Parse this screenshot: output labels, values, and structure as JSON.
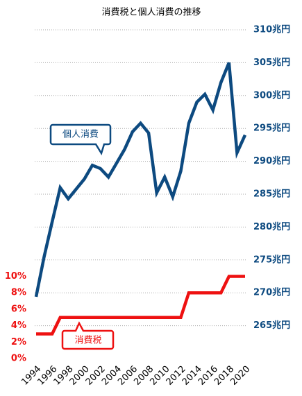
{
  "chart_data": {
    "type": "line",
    "title": "消費税と個人消費の推移",
    "x": [
      1994,
      1995,
      1996,
      1997,
      1998,
      1999,
      2000,
      2001,
      2002,
      2003,
      2004,
      2005,
      2006,
      2007,
      2008,
      2009,
      2010,
      2011,
      2012,
      2013,
      2014,
      2015,
      2016,
      2017,
      2018,
      2019,
      2020
    ],
    "xticks": [
      1994,
      1996,
      1998,
      2000,
      2002,
      2004,
      2006,
      2008,
      2010,
      2012,
      2014,
      2016,
      2018,
      2020
    ],
    "xlim": [
      1994,
      2020
    ],
    "series": [
      {
        "name": "個人消費",
        "color": "#0d4a80",
        "axis": "y2",
        "values": [
          269.4,
          275.5,
          280.8,
          286.0,
          284.3,
          285.8,
          287.3,
          289.4,
          288.9,
          287.6,
          289.7,
          291.8,
          294.5,
          295.8,
          294.3,
          285.2,
          287.6,
          284.6,
          288.5,
          295.8,
          299.0,
          300.2,
          297.8,
          302.0,
          305.0,
          291.3,
          294.0
        ]
      },
      {
        "name": "消費税",
        "color": "#ee1111",
        "values": [
          3,
          3,
          3,
          5,
          5,
          5,
          5,
          5,
          5,
          5,
          5,
          5,
          5,
          5,
          5,
          5,
          5,
          5,
          5,
          8,
          8,
          8,
          8,
          8,
          10,
          10,
          10
        ]
      }
    ],
    "ylim": [
      0,
      40
    ],
    "yticks": [
      {
        "value": 0,
        "label": "0%"
      },
      {
        "value": 2,
        "label": "2%"
      },
      {
        "value": 4,
        "label": "4%"
      },
      {
        "value": 6,
        "label": "6%"
      },
      {
        "value": 8,
        "label": "8%"
      },
      {
        "value": 10,
        "label": "10%"
      }
    ],
    "y2lim": [
      260,
      310
    ],
    "y2ticks": [
      {
        "value": 265,
        "label": "265兆円"
      },
      {
        "value": 270,
        "label": "270兆円"
      },
      {
        "value": 275,
        "label": "275兆円"
      },
      {
        "value": 280,
        "label": "280兆円"
      },
      {
        "value": 285,
        "label": "285兆円"
      },
      {
        "value": 290,
        "label": "290兆円"
      },
      {
        "value": 295,
        "label": "295兆円"
      },
      {
        "value": 300,
        "label": "300兆円"
      },
      {
        "value": 305,
        "label": "305兆円"
      },
      {
        "value": 310,
        "label": "310兆円"
      }
    ],
    "grid": true
  }
}
